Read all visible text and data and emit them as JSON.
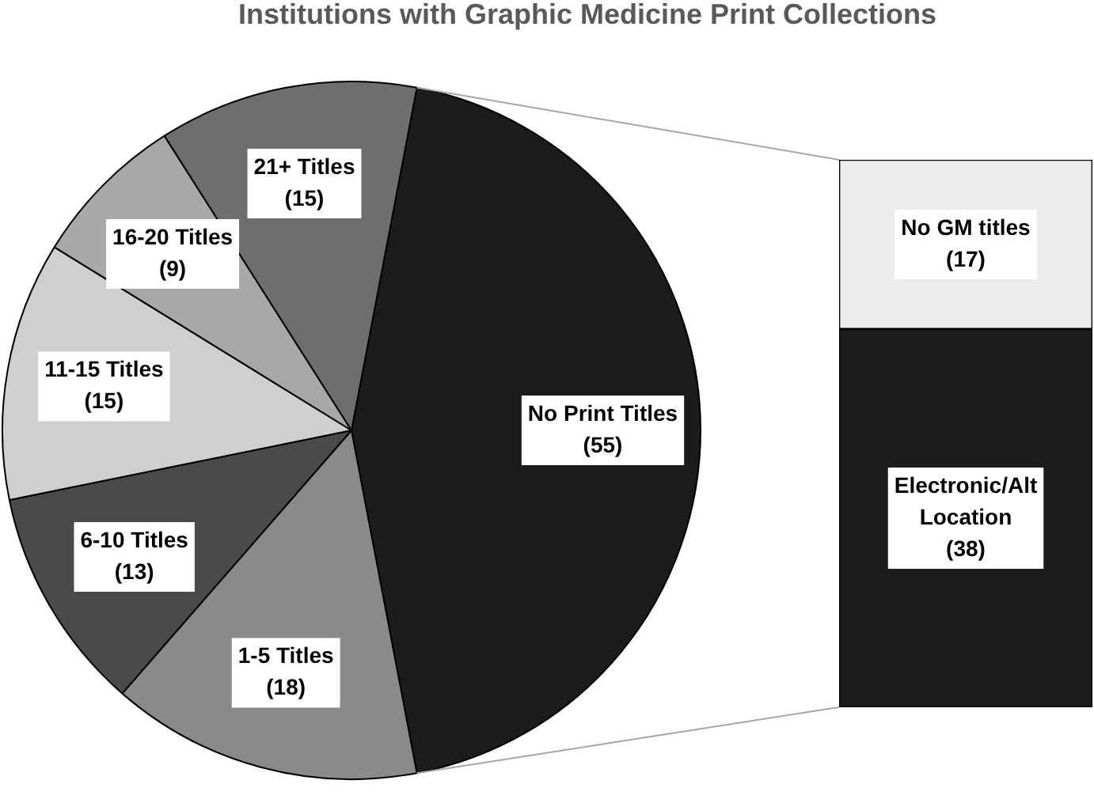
{
  "chart_data": [
    {
      "type": "pie",
      "title": "Institutions with Graphic Medicine Print Collections",
      "categories": [
        "No Print Titles",
        "1-5 Titles",
        "6-10 Titles",
        "11-15 Titles",
        "16-20 Titles",
        "21+ Titles"
      ],
      "values": [
        55,
        18,
        13,
        15,
        9,
        15
      ],
      "value_labels": [
        "(55)",
        "(18)",
        "(13)",
        "(15)",
        "(9)",
        "(15)"
      ],
      "colors": [
        "#1c1c1c",
        "#8a8a8a",
        "#4a4a4a",
        "#cfcfcf",
        "#a8a8a8",
        "#6e6e6e"
      ]
    },
    {
      "type": "bar",
      "categories": [
        null
      ],
      "stacked": true,
      "series": [
        {
          "name": "Electronic/Alt Location",
          "color": "#1c1c1c",
          "values": [
            38
          ],
          "value_labels": [
            "(38)"
          ]
        },
        {
          "name": "No GM titles",
          "color": "#ececec",
          "values": [
            17
          ],
          "value_labels": [
            "(17)"
          ]
        }
      ],
      "tick_labels": false
    }
  ]
}
